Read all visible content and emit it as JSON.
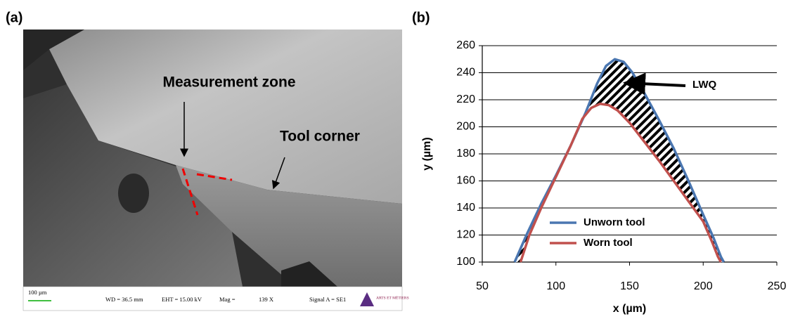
{
  "panel_a": {
    "label": "(a)",
    "annotations": [
      "Measurement zone",
      "Tool corner"
    ],
    "info_bar": {
      "scale": "100 µm",
      "wd": "WD = 36.5 mm",
      "eht": "EHT = 15.00 kV",
      "mag": "Mag =",
      "mag_value": "139 X",
      "signal": "Signal A = SE1",
      "logo": "ARTS ET MÉTIERS"
    }
  },
  "chart_data": {
    "type": "line",
    "label": "(b)",
    "x_label": "x (µm)",
    "y_label": "y (µm)",
    "xlim": [
      50,
      250
    ],
    "xticks": [
      50,
      100,
      150,
      200,
      250
    ],
    "ylim": [
      100,
      260
    ],
    "yticks": [
      100,
      120,
      140,
      160,
      180,
      200,
      220,
      240,
      260
    ],
    "grid": true,
    "legend": "lower left",
    "annotation": "LWQ",
    "series": [
      {
        "name": "Unworn tool",
        "color": "#4a76b0",
        "x": [
          72,
          80,
          90,
          100,
          110,
          120,
          128,
          134,
          140,
          146,
          152,
          160,
          170,
          180,
          190,
          200,
          207,
          212,
          214
        ],
        "values": [
          100,
          120,
          143,
          164,
          186,
          210,
          232,
          245,
          250,
          248,
          240,
          225,
          205,
          184,
          160,
          135,
          118,
          104,
          100
        ]
      },
      {
        "name": "Worn tool",
        "color": "#c0504d",
        "x": [
          76,
          82,
          90,
          100,
          110,
          118,
          124,
          130,
          136,
          142,
          150,
          160,
          170,
          180,
          190,
          200,
          206,
          210,
          212
        ],
        "values": [
          100,
          120,
          140,
          163,
          186,
          206,
          214,
          217,
          216,
          212,
          203,
          189,
          175,
          160,
          145,
          130,
          115,
          104,
          100
        ]
      }
    ]
  }
}
